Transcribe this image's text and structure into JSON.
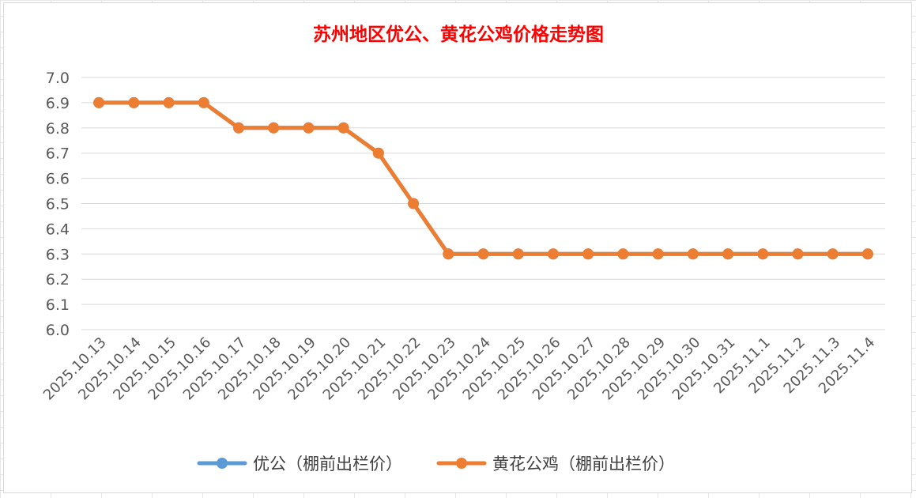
{
  "chart_data": {
    "type": "line",
    "title": "苏州地区优公、黄花公鸡价格走势图",
    "xlabel": "",
    "ylabel": "",
    "ylim": [
      6.0,
      7.0
    ],
    "ytick_labels": [
      "6.0",
      "6.1",
      "6.2",
      "6.3",
      "6.4",
      "6.5",
      "6.6",
      "6.7",
      "6.8",
      "6.9",
      "7.0"
    ],
    "grid": "horizontal",
    "legend_position": "bottom",
    "categories": [
      "2025.10.13",
      "2025.10.14",
      "2025.10.15",
      "2025.10.16",
      "2025.10.17",
      "2025.10.18",
      "2025.10.19",
      "2025.10.20",
      "2025.10.21",
      "2025.10.22",
      "2025.10.23",
      "2025.10.24",
      "2025.10.25",
      "2025.10.26",
      "2025.10.27",
      "2025.10.28",
      "2025.10.29",
      "2025.10.30",
      "2025.10.31",
      "2025.11.1",
      "2025.11.2",
      "2025.11.3",
      "2025.11.4"
    ],
    "series": [
      {
        "name": "优公（棚前出栏价）",
        "color": "#5b9bd5",
        "values": [
          6.9,
          6.9,
          6.9,
          6.9,
          6.8,
          6.8,
          6.8,
          6.8,
          6.7,
          6.5,
          6.3,
          6.3,
          6.3,
          6.3,
          6.3,
          6.3,
          6.3,
          6.3,
          6.3,
          6.3,
          6.3,
          6.3,
          6.3
        ]
      },
      {
        "name": "黄花公鸡（棚前出栏价）",
        "color": "#ed7d31",
        "values": [
          6.9,
          6.9,
          6.9,
          6.9,
          6.8,
          6.8,
          6.8,
          6.8,
          6.7,
          6.5,
          6.3,
          6.3,
          6.3,
          6.3,
          6.3,
          6.3,
          6.3,
          6.3,
          6.3,
          6.3,
          6.3,
          6.3,
          6.3
        ]
      }
    ]
  }
}
